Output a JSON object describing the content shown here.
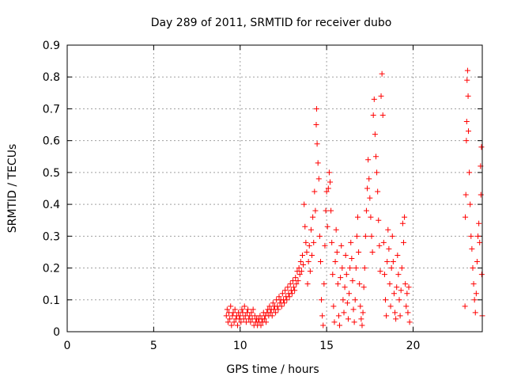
{
  "chart_data": {
    "type": "scatter",
    "title": "Day 289 of 2011, SRMTID for receiver dubo",
    "xlabel": "GPS time / hours",
    "ylabel": "SRMTID / TECUs",
    "xlim": [
      0,
      24
    ],
    "ylim": [
      0,
      0.9
    ],
    "xticks": [
      0,
      5,
      10,
      15,
      20
    ],
    "yticks": [
      0,
      0.1,
      0.2,
      0.3,
      0.4,
      0.5,
      0.6,
      0.7,
      0.8,
      0.9
    ],
    "xtick_labels": [
      "0",
      "5",
      "10",
      "15",
      "20"
    ],
    "ytick_labels": [
      "0",
      "0.1",
      "0.2",
      "0.3",
      "0.4",
      "0.5",
      "0.6",
      "0.7",
      "0.8",
      "0.9"
    ],
    "grid": true,
    "marker": "plus",
    "color": "#ff0000",
    "series": [
      {
        "points": [
          [
            9.2,
            0.05
          ],
          [
            9.25,
            0.07
          ],
          [
            9.3,
            0.03
          ],
          [
            9.35,
            0.06
          ],
          [
            9.4,
            0.04
          ],
          [
            9.45,
            0.08
          ],
          [
            9.5,
            0.02
          ],
          [
            9.55,
            0.05
          ],
          [
            9.6,
            0.06
          ],
          [
            9.65,
            0.03
          ],
          [
            9.7,
            0.07
          ],
          [
            9.75,
            0.04
          ],
          [
            9.8,
            0.05
          ],
          [
            9.85,
            0.02
          ],
          [
            9.9,
            0.06
          ],
          [
            9.95,
            0.04
          ],
          [
            10.0,
            0.05
          ],
          [
            10.05,
            0.03
          ],
          [
            10.1,
            0.07
          ],
          [
            10.15,
            0.06
          ],
          [
            10.2,
            0.04
          ],
          [
            10.25,
            0.08
          ],
          [
            10.3,
            0.05
          ],
          [
            10.35,
            0.03
          ],
          [
            10.4,
            0.06
          ],
          [
            10.45,
            0.07
          ],
          [
            10.5,
            0.04
          ],
          [
            10.55,
            0.05
          ],
          [
            10.6,
            0.03
          ],
          [
            10.65,
            0.06
          ],
          [
            10.7,
            0.04
          ],
          [
            10.75,
            0.07
          ],
          [
            10.8,
            0.02
          ],
          [
            10.85,
            0.05
          ],
          [
            10.9,
            0.03
          ],
          [
            10.95,
            0.04
          ],
          [
            11.0,
            0.02
          ],
          [
            11.05,
            0.04
          ],
          [
            11.1,
            0.03
          ],
          [
            11.15,
            0.05
          ],
          [
            11.2,
            0.02
          ],
          [
            11.25,
            0.04
          ],
          [
            11.3,
            0.03
          ],
          [
            11.35,
            0.06
          ],
          [
            11.4,
            0.04
          ],
          [
            11.45,
            0.05
          ],
          [
            11.5,
            0.03
          ],
          [
            11.55,
            0.06
          ],
          [
            11.6,
            0.07
          ],
          [
            11.65,
            0.05
          ],
          [
            11.7,
            0.08
          ],
          [
            11.75,
            0.06
          ],
          [
            11.8,
            0.07
          ],
          [
            11.85,
            0.05
          ],
          [
            11.9,
            0.09
          ],
          [
            11.95,
            0.07
          ],
          [
            12.0,
            0.08
          ],
          [
            12.05,
            0.06
          ],
          [
            12.1,
            0.1
          ],
          [
            12.15,
            0.08
          ],
          [
            12.2,
            0.07
          ],
          [
            12.25,
            0.11
          ],
          [
            12.3,
            0.09
          ],
          [
            12.35,
            0.1
          ],
          [
            12.4,
            0.08
          ],
          [
            12.45,
            0.12
          ],
          [
            12.5,
            0.1
          ],
          [
            12.55,
            0.09
          ],
          [
            12.6,
            0.13
          ],
          [
            12.65,
            0.11
          ],
          [
            12.7,
            0.1
          ],
          [
            12.75,
            0.14
          ],
          [
            12.8,
            0.12
          ],
          [
            12.85,
            0.11
          ],
          [
            12.9,
            0.15
          ],
          [
            12.95,
            0.13
          ],
          [
            13.0,
            0.12
          ],
          [
            13.05,
            0.16
          ],
          [
            13.1,
            0.14
          ],
          [
            13.15,
            0.13
          ],
          [
            13.2,
            0.17
          ],
          [
            13.25,
            0.15
          ],
          [
            13.3,
            0.19
          ],
          [
            13.35,
            0.16
          ],
          [
            13.4,
            0.2
          ],
          [
            13.45,
            0.18
          ],
          [
            13.5,
            0.22
          ],
          [
            13.55,
            0.19
          ],
          [
            13.6,
            0.24
          ],
          [
            13.65,
            0.21
          ],
          [
            13.7,
            0.4
          ],
          [
            13.75,
            0.33
          ],
          [
            13.8,
            0.28
          ],
          [
            13.85,
            0.25
          ],
          [
            13.9,
            0.15
          ],
          [
            13.95,
            0.22
          ],
          [
            14.0,
            0.27
          ],
          [
            14.05,
            0.19
          ],
          [
            14.1,
            0.32
          ],
          [
            14.15,
            0.24
          ],
          [
            14.2,
            0.36
          ],
          [
            14.25,
            0.28
          ],
          [
            14.3,
            0.44
          ],
          [
            14.35,
            0.38
          ],
          [
            14.4,
            0.65
          ],
          [
            14.42,
            0.7
          ],
          [
            14.45,
            0.59
          ],
          [
            14.5,
            0.53
          ],
          [
            14.55,
            0.48
          ],
          [
            14.6,
            0.3
          ],
          [
            14.65,
            0.22
          ],
          [
            14.7,
            0.1
          ],
          [
            14.75,
            0.05
          ],
          [
            14.8,
            0.02
          ],
          [
            14.85,
            0.15
          ],
          [
            14.9,
            0.27
          ],
          [
            14.95,
            0.38
          ],
          [
            15.0,
            0.44
          ],
          [
            15.05,
            0.33
          ],
          [
            15.1,
            0.45
          ],
          [
            15.15,
            0.5
          ],
          [
            15.2,
            0.47
          ],
          [
            15.25,
            0.38
          ],
          [
            15.3,
            0.28
          ],
          [
            15.35,
            0.18
          ],
          [
            15.4,
            0.08
          ],
          [
            15.45,
            0.03
          ],
          [
            15.5,
            0.22
          ],
          [
            15.55,
            0.32
          ],
          [
            15.6,
            0.25
          ],
          [
            15.65,
            0.15
          ],
          [
            15.7,
            0.05
          ],
          [
            15.75,
            0.02
          ],
          [
            15.8,
            0.17
          ],
          [
            15.85,
            0.27
          ],
          [
            15.9,
            0.2
          ],
          [
            15.95,
            0.1
          ],
          [
            16.0,
            0.06
          ],
          [
            16.05,
            0.14
          ],
          [
            16.1,
            0.24
          ],
          [
            16.15,
            0.18
          ],
          [
            16.2,
            0.09
          ],
          [
            16.25,
            0.04
          ],
          [
            16.3,
            0.12
          ],
          [
            16.35,
            0.2
          ],
          [
            16.4,
            0.28
          ],
          [
            16.45,
            0.23
          ],
          [
            16.5,
            0.16
          ],
          [
            16.55,
            0.07
          ],
          [
            16.6,
            0.03
          ],
          [
            16.65,
            0.1
          ],
          [
            16.7,
            0.2
          ],
          [
            16.75,
            0.3
          ],
          [
            16.8,
            0.36
          ],
          [
            16.85,
            0.25
          ],
          [
            16.9,
            0.15
          ],
          [
            16.95,
            0.08
          ],
          [
            17.0,
            0.04
          ],
          [
            17.05,
            0.02
          ],
          [
            17.1,
            0.06
          ],
          [
            17.15,
            0.14
          ],
          [
            17.2,
            0.2
          ],
          [
            17.25,
            0.3
          ],
          [
            17.3,
            0.38
          ],
          [
            17.35,
            0.45
          ],
          [
            17.4,
            0.54
          ],
          [
            17.45,
            0.48
          ],
          [
            17.5,
            0.42
          ],
          [
            17.55,
            0.36
          ],
          [
            17.6,
            0.3
          ],
          [
            17.65,
            0.25
          ],
          [
            17.7,
            0.68
          ],
          [
            17.75,
            0.73
          ],
          [
            17.8,
            0.62
          ],
          [
            17.85,
            0.55
          ],
          [
            17.9,
            0.5
          ],
          [
            17.95,
            0.44
          ],
          [
            18.0,
            0.35
          ],
          [
            18.05,
            0.27
          ],
          [
            18.1,
            0.19
          ],
          [
            18.15,
            0.74
          ],
          [
            18.2,
            0.81
          ],
          [
            18.25,
            0.68
          ],
          [
            18.3,
            0.28
          ],
          [
            18.35,
            0.18
          ],
          [
            18.4,
            0.1
          ],
          [
            18.45,
            0.05
          ],
          [
            18.5,
            0.22
          ],
          [
            18.55,
            0.32
          ],
          [
            18.6,
            0.26
          ],
          [
            18.65,
            0.15
          ],
          [
            18.7,
            0.08
          ],
          [
            18.75,
            0.2
          ],
          [
            18.8,
            0.3
          ],
          [
            18.85,
            0.22
          ],
          [
            18.9,
            0.12
          ],
          [
            18.95,
            0.06
          ],
          [
            19.0,
            0.04
          ],
          [
            19.05,
            0.14
          ],
          [
            19.1,
            0.24
          ],
          [
            19.15,
            0.18
          ],
          [
            19.2,
            0.1
          ],
          [
            19.25,
            0.05
          ],
          [
            19.3,
            0.13
          ],
          [
            19.35,
            0.2
          ],
          [
            19.4,
            0.34
          ],
          [
            19.45,
            0.28
          ],
          [
            19.5,
            0.36
          ],
          [
            19.55,
            0.15
          ],
          [
            19.6,
            0.08
          ],
          [
            19.65,
            0.12
          ],
          [
            19.7,
            0.06
          ],
          [
            19.75,
            0.14
          ],
          [
            19.8,
            0.03
          ],
          [
            23.0,
            0.08
          ],
          [
            23.02,
            0.36
          ],
          [
            23.05,
            0.43
          ],
          [
            23.08,
            0.6
          ],
          [
            23.1,
            0.66
          ],
          [
            23.12,
            0.79
          ],
          [
            23.15,
            0.82
          ],
          [
            23.18,
            0.74
          ],
          [
            23.2,
            0.63
          ],
          [
            23.25,
            0.5
          ],
          [
            23.3,
            0.4
          ],
          [
            23.35,
            0.3
          ],
          [
            23.4,
            0.26
          ],
          [
            23.45,
            0.2
          ],
          [
            23.5,
            0.15
          ],
          [
            23.55,
            0.1
          ],
          [
            23.6,
            0.06
          ],
          [
            23.65,
            0.12
          ],
          [
            23.7,
            0.22
          ],
          [
            23.75,
            0.3
          ],
          [
            23.8,
            0.34
          ],
          [
            23.85,
            0.28
          ],
          [
            23.9,
            0.52
          ],
          [
            23.92,
            0.43
          ],
          [
            23.95,
            0.58
          ],
          [
            23.97,
            0.18
          ],
          [
            24.0,
            0.05
          ]
        ]
      }
    ]
  }
}
